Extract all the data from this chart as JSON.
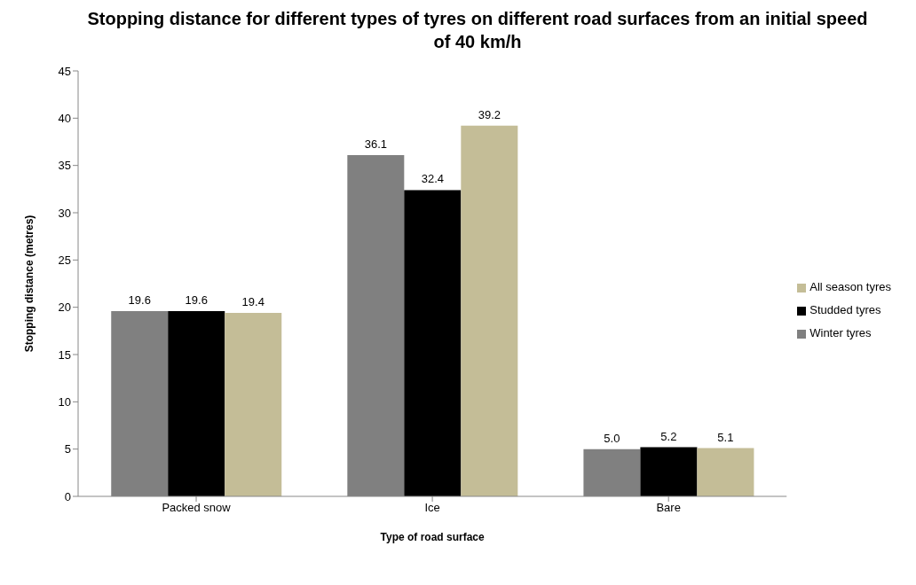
{
  "chart_data": {
    "type": "bar",
    "title": "Stopping distance for different types of tyres on different road surfaces from an initial speed of 40 km/h",
    "xlabel": "Type of road surface",
    "ylabel": "Stopping distance (metres)",
    "categories": [
      "Packed snow",
      "Ice",
      "Bare"
    ],
    "series": [
      {
        "name": "Winter tyres",
        "color": "#808080",
        "values": [
          19.6,
          36.1,
          5.0
        ],
        "value_labels": [
          "19.6",
          "36.1",
          "5.0"
        ]
      },
      {
        "name": "Studded tyres",
        "color": "#000000",
        "values": [
          19.6,
          32.4,
          5.2
        ],
        "value_labels": [
          "19.6",
          "32.4",
          "5.2"
        ]
      },
      {
        "name": "All season tyres",
        "color": "#c4bd97",
        "values": [
          19.4,
          39.2,
          5.1
        ],
        "value_labels": [
          "19.4",
          "39.2",
          "5.1"
        ]
      }
    ],
    "ylim": [
      0,
      45
    ],
    "yticks": [
      0,
      5,
      10,
      15,
      20,
      25,
      30,
      35,
      40,
      45
    ],
    "grid": false,
    "legend": "right"
  }
}
